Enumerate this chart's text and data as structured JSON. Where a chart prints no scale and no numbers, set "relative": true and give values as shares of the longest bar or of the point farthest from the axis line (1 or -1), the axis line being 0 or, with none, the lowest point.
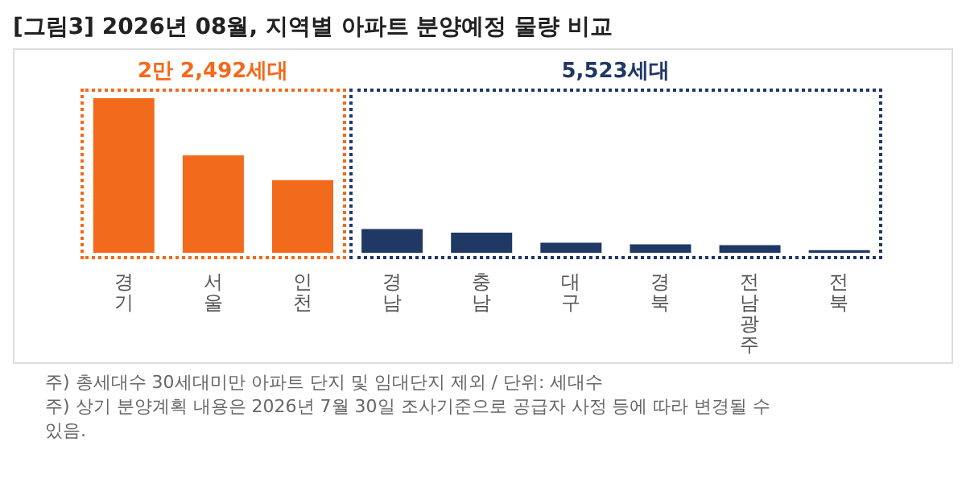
{
  "chart_data": {
    "type": "bar",
    "title": "[그림3] 2026년 08월, 지역별 아파트 분양예정 물량 비교",
    "categories": [
      "경기",
      "서울",
      "인천",
      "경남",
      "충남",
      "대구",
      "경북",
      "전남광주",
      "전북"
    ],
    "values": [
      1,
      0.63,
      0.47,
      0.154,
      0.13,
      0.065,
      0.055,
      0.05,
      0.017
    ],
    "colors": [
      "#f26a1b",
      "#f26a1b",
      "#f26a1b",
      "#1f3864",
      "#1f3864",
      "#1f3864",
      "#1f3864",
      "#1f3864",
      "#1f3864"
    ],
    "relative": true,
    "grid": false,
    "legend": false,
    "annotations": [
      "2만 2,492세대",
      "5,523세대",
      "주) 총세대수 30세대미만 아파트  단지 및 임대단지 제외 / 단위: 세대수",
      "주) 상기 분양계획 내용은 2026년 7월 30일 조사기준으로 공급자 사정 등에 따라 변경될 수 있음."
    ]
  }
}
